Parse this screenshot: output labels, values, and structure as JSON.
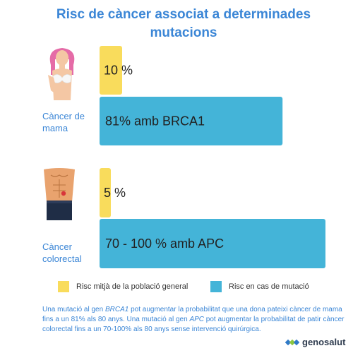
{
  "title": "Risc de càncer associat a determinades mutacions",
  "chart_data": {
    "type": "bar",
    "orientation": "horizontal",
    "xlim": [
      0,
      100
    ],
    "categories": [
      "Càncer de mama",
      "Càncer colorectal"
    ],
    "series": [
      {
        "name": "Risc mitjà de la població general",
        "color": "#f9dc5c",
        "values": [
          10,
          5
        ],
        "labels": [
          "10 %",
          "5 %"
        ]
      },
      {
        "name": "Risc en cas de mutació",
        "color": "#44b4d8",
        "values": [
          81,
          100
        ],
        "labels": [
          "81% amb BRCA1",
          "70 - 100 % amb APC"
        ]
      }
    ]
  },
  "legend": {
    "general": "Risc mitjà de la població general",
    "mutation": "Risc en cas de mutació"
  },
  "note": {
    "p1": "Una mutació al gen ",
    "gene1": "BRCA1",
    "p2": " pot augmentar la probabilitat que una dona pateixi càncer de mama fins a un 81% als 80 anys. Una mutació al gen ",
    "gene2": "APC",
    "p3": " pot augmentar la probabilitat de patir càncer colorectal fins a un 70-100% als 80 anys sense intervenció quirúrgica."
  },
  "logo": {
    "text": "genosalut"
  },
  "icons": [
    "woman-breast-icon",
    "male-torso-icon",
    "genosalut-logo-icon"
  ]
}
